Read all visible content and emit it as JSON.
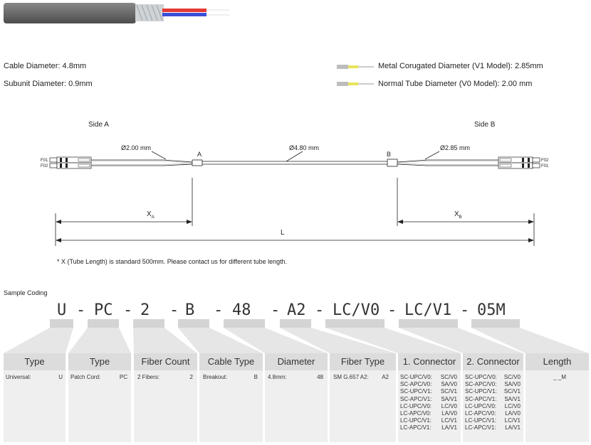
{
  "specs_left": [
    {
      "text": "Cable Diameter: 4.8mm"
    },
    {
      "text": "Subunit Diameter: 0.9mm"
    }
  ],
  "specs_right": [
    {
      "text": "Metal Corugated Diameter (V1 Model): 2.85mm"
    },
    {
      "text": "Normal Tube Diameter (V0 Model): 2.00 mm"
    }
  ],
  "drawing": {
    "side_a": "Side A",
    "side_b": "Side B",
    "dia_a": "Ø2.00 mm",
    "dia_mid": "Ø4.80 mm",
    "dia_b": "Ø2.85 mm",
    "point_a": "A",
    "point_b": "B",
    "f01": "F01",
    "f02": "F02",
    "xa": "X",
    "xa_sub": "A",
    "xb": "X",
    "xb_sub": "B",
    "length": "L",
    "note": "* X (Tube Length) is standard 500mm. Please contact us for different tube length."
  },
  "coding": {
    "title": "Sample Coding",
    "chars": [
      "U",
      "-",
      "PC",
      "-",
      "2",
      "-",
      "B",
      "-",
      "48",
      "-",
      "A2",
      "-",
      "LC/V0",
      "-",
      "LC/V1",
      "-",
      "05M"
    ]
  },
  "columns": [
    {
      "header": "Type",
      "rows": [
        {
          "label": "Universal:",
          "value": "U"
        }
      ]
    },
    {
      "header": "Type",
      "rows": [
        {
          "label": "Patch Cord:",
          "value": "PC"
        }
      ]
    },
    {
      "header": "Fiber Count",
      "rows": [
        {
          "label": "2 Fibers:",
          "value": "2"
        }
      ]
    },
    {
      "header": "Cable Type",
      "rows": [
        {
          "label": "Breakout:",
          "value": "B"
        }
      ]
    },
    {
      "header": "Diameter",
      "rows": [
        {
          "label": "4.8mm:",
          "value": "48"
        }
      ]
    },
    {
      "header": "Fiber Type",
      "rows": [
        {
          "label": "SM G.657 A2:",
          "value": "A2"
        }
      ]
    },
    {
      "header": "1. Connector",
      "rows": [
        {
          "label": "SC-UPC/V0:",
          "value": "SC/V0"
        },
        {
          "label": "SC-APC/V0:",
          "value": "SA/V0"
        },
        {
          "label": "SC-UPC/V1:",
          "value": "SC/V1"
        },
        {
          "label": "SC-APC/V1:",
          "value": "SA/V1"
        },
        {
          "label": "LC-UPC/V0:",
          "value": "LC/V0"
        },
        {
          "label": "LC-APC/V0:",
          "value": "LA/V0"
        },
        {
          "label": "LC-UPC/V1:",
          "value": "LC/V1"
        },
        {
          "label": "LC-APC/V1:",
          "value": "LA/V1"
        }
      ]
    },
    {
      "header": "2. Connector",
      "rows": [
        {
          "label": "SC-UPC/V0:",
          "value": "SC/V0"
        },
        {
          "label": "SC-APC/V0:",
          "value": "SA/V0"
        },
        {
          "label": "SC-UPC/V1:",
          "value": "SC/V1"
        },
        {
          "label": "SC-APC/V1:",
          "value": "SA/V1"
        },
        {
          "label": "LC-UPC/V0:",
          "value": "LC/V0"
        },
        {
          "label": "LC-APC/V0:",
          "value": "LA/V0"
        },
        {
          "label": "LC-UPC/V1:",
          "value": "LC/V1"
        },
        {
          "label": "LC-APC/V1:",
          "value": "LA/V1"
        }
      ]
    },
    {
      "header": "Length",
      "rows": [
        {
          "label": "",
          "value": "_ _M"
        }
      ]
    }
  ],
  "colors": {
    "cable_grey": "#6b6b6b",
    "fiber_red": "#e53935",
    "fiber_blue": "#3b4fd8",
    "header_grey": "#dcdcdc",
    "body_grey": "#efefef",
    "bar_grey": "#d4d4d4",
    "tube_yellow": "#e8e45a"
  }
}
